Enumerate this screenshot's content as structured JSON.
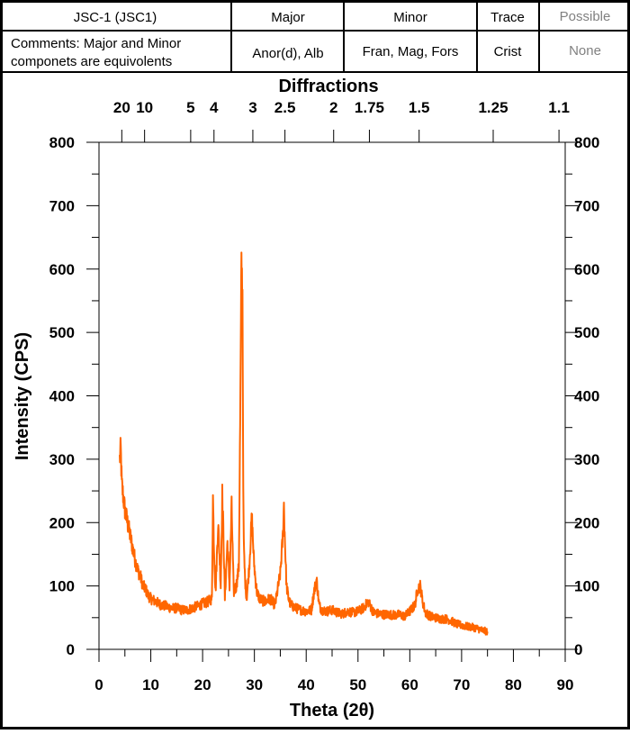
{
  "header": {
    "sample": "JSC-1 (JSC1)",
    "col_major": "Major",
    "col_minor": "Minor",
    "col_trace": "Trace",
    "col_possible": "Possible",
    "comments_line1": "Comments: Major and Minor",
    "comments_line2": "componets are equivolents",
    "major_value": "Anor(d), Alb",
    "minor_value": "Fran, Mag, Fors",
    "trace_value": "Crist",
    "possible_value": "None"
  },
  "colors": {
    "series": "#ff6600",
    "header_grey": "#808080"
  },
  "chart_data": {
    "type": "line",
    "xlabel": "Theta (2θ)",
    "ylabel": "Intensity (CPS)",
    "top_axis_label": "Diffractions",
    "xlim": [
      0,
      90
    ],
    "ylim": [
      0,
      800
    ],
    "x_ticks": [
      0,
      10,
      20,
      30,
      40,
      50,
      60,
      70,
      80,
      90
    ],
    "y_ticks": [
      0,
      100,
      200,
      300,
      400,
      500,
      600,
      700,
      800
    ],
    "top_ticks": [
      {
        "label": "20",
        "x": 4.4
      },
      {
        "label": "10",
        "x": 8.8
      },
      {
        "label": "5",
        "x": 17.7
      },
      {
        "label": "4",
        "x": 22.2
      },
      {
        "label": "3",
        "x": 29.7
      },
      {
        "label": "2.5",
        "x": 35.9
      },
      {
        "label": "2",
        "x": 45.3
      },
      {
        "label": "1.75",
        "x": 52.2
      },
      {
        "label": "1.5",
        "x": 61.8
      },
      {
        "label": "1.25",
        "x": 76.1
      },
      {
        "label": "1.1",
        "x": 88.8
      }
    ],
    "grid": false,
    "series": [
      {
        "color": "#ff6600",
        "x": [
          4.0,
          4.2,
          4.4,
          4.7,
          5.0,
          5.5,
          6.0,
          6.5,
          7.0,
          7.5,
          8.0,
          8.5,
          9.0,
          9.5,
          10.0,
          11.0,
          12.0,
          13.0,
          14.0,
          15.0,
          16.0,
          17.0,
          18.0,
          19.0,
          20.0,
          21.0,
          21.8,
          22.0,
          22.2,
          22.5,
          23.0,
          23.5,
          23.8,
          24.0,
          24.3,
          24.8,
          25.2,
          25.6,
          26.0,
          26.5,
          27.0,
          27.3,
          27.5,
          27.7,
          27.8,
          27.9,
          28.0,
          28.2,
          28.5,
          29.0,
          29.5,
          29.9,
          30.2,
          30.5,
          31.0,
          32.0,
          33.0,
          34.0,
          35.0,
          35.5,
          35.7,
          35.9,
          36.2,
          36.6,
          37.0,
          38.0,
          39.0,
          40.0,
          41.0,
          41.5,
          42.0,
          42.5,
          43.0,
          44.0,
          45.0,
          46.0,
          47.0,
          48.0,
          49.0,
          50.0,
          51.0,
          52.0,
          53.0,
          54.0,
          55.0,
          56.0,
          57.0,
          58.0,
          59.0,
          60.0,
          61.0,
          61.5,
          62.0,
          62.5,
          63.0,
          64.0,
          65.0,
          66.0,
          67.0,
          68.0,
          69.0,
          70.0,
          71.0,
          72.0,
          73.0,
          74.0,
          75.0
        ],
        "y": [
          300,
          315,
          260,
          240,
          220,
          200,
          180,
          160,
          140,
          125,
          115,
          100,
          95,
          85,
          80,
          75,
          70,
          68,
          65,
          65,
          62,
          62,
          65,
          68,
          72,
          75,
          80,
          240,
          160,
          90,
          200,
          100,
          245,
          190,
          80,
          170,
          100,
          225,
          90,
          100,
          130,
          400,
          605,
          560,
          350,
          200,
          150,
          110,
          80,
          130,
          210,
          140,
          110,
          90,
          80,
          75,
          80,
          70,
          120,
          180,
          228,
          170,
          100,
          80,
          70,
          65,
          62,
          60,
          62,
          90,
          110,
          70,
          62,
          60,
          62,
          58,
          56,
          60,
          58,
          60,
          65,
          75,
          58,
          56,
          55,
          55,
          54,
          55,
          52,
          60,
          70,
          95,
          100,
          75,
          58,
          52,
          50,
          48,
          48,
          45,
          40,
          38,
          36,
          35,
          33,
          30,
          28
        ]
      }
    ]
  }
}
